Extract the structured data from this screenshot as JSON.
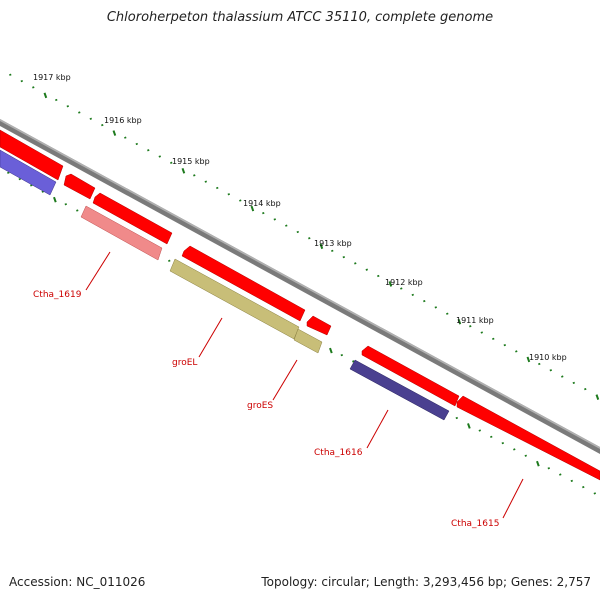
{
  "title": "Chloroherpeton thalassium ATCC 35110, complete genome",
  "footer": {
    "accession": "Accession: NC_011026",
    "stats": "Topology: circular; Length: 3,293,456 bp; Genes: 2,757"
  },
  "ruler": [
    "1917 kbp",
    "1916 kbp",
    "1915 kbp",
    "1914 kbp",
    "1913 kbp",
    "1912 kbp",
    "1911 kbp",
    "1910 kbp"
  ],
  "gene_labels": [
    "Ctha_1619",
    "groEL",
    "groES",
    "Ctha_1616",
    "Ctha_1615"
  ],
  "colors": {
    "cds_forward": "#ff0000",
    "cds_reverse": "#e87b7b",
    "chaperone": "#c8be78",
    "reverse_blue": "#5a4fa3",
    "backbone": "#8a8a8a",
    "tick": "#1d7a1d",
    "label": "#cc0000"
  }
}
